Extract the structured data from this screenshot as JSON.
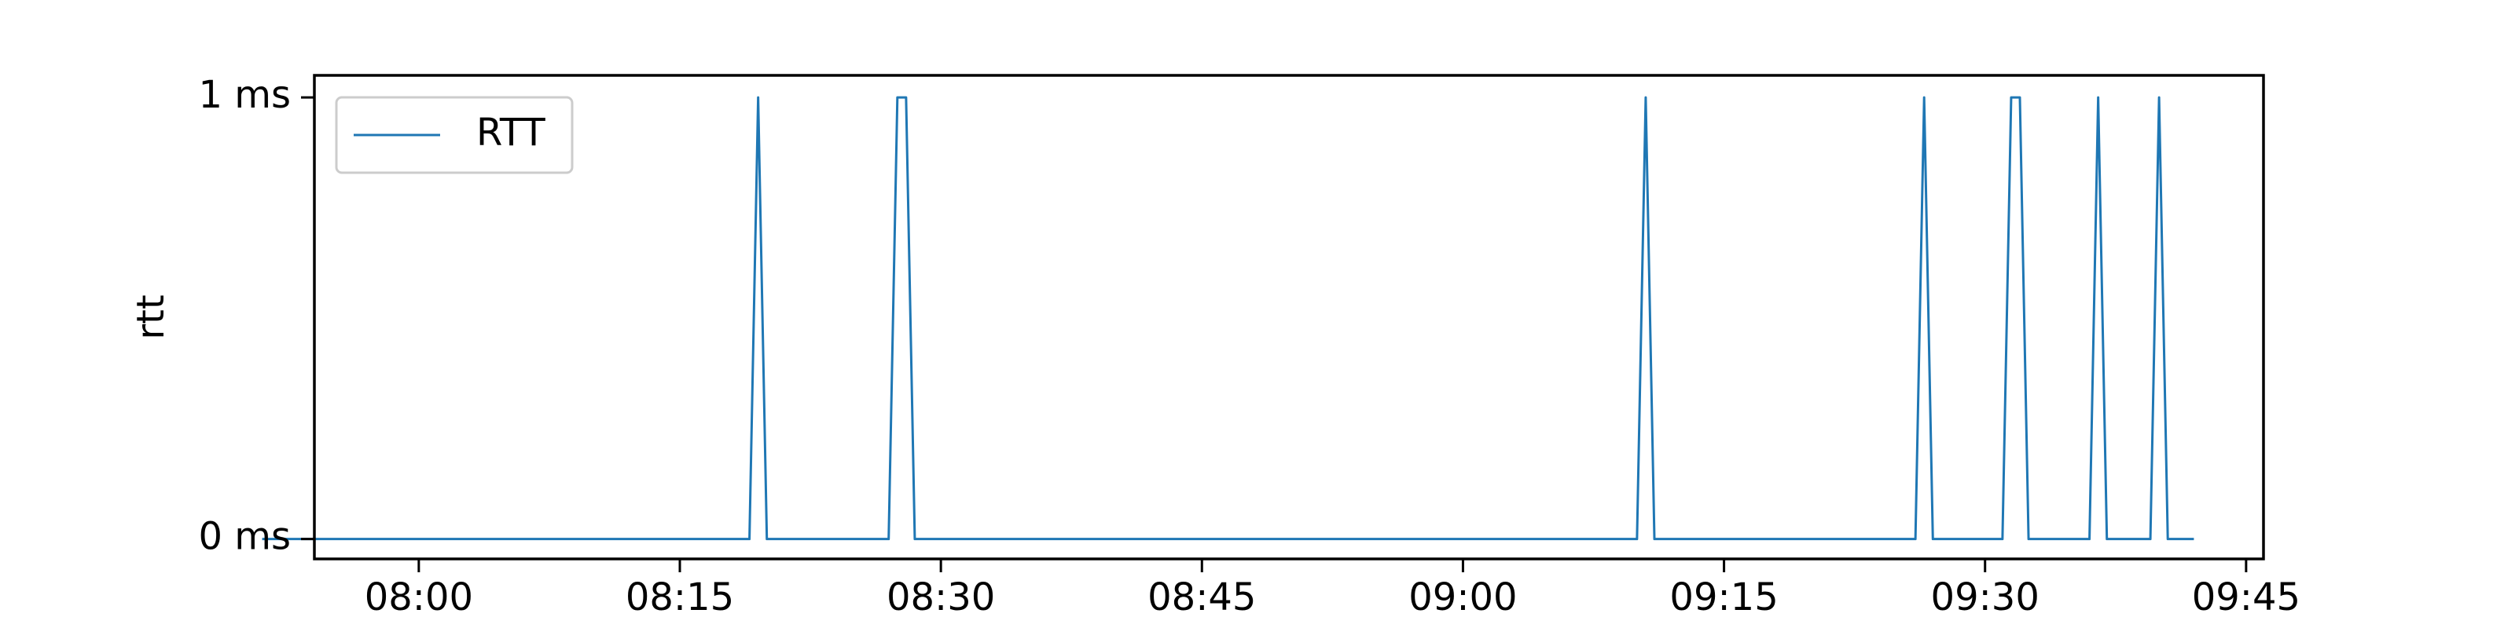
{
  "chart_data": {
    "type": "line",
    "title": "",
    "xlabel": "",
    "ylabel": "rtt",
    "x_ticks": [
      "08:00",
      "08:15",
      "08:30",
      "08:45",
      "09:00",
      "09:15",
      "09:30",
      "09:45"
    ],
    "y_ticks": [
      "0 ms",
      "1 ms"
    ],
    "xlim": [
      "07:54",
      "09:46"
    ],
    "ylim": [
      -0.045,
      1.05
    ],
    "grid": false,
    "legend_position": "top-left",
    "series": [
      {
        "name": "RTT",
        "color": "#1f77b4",
        "points": [
          [
            "07:51",
            0
          ],
          [
            "08:19",
            0
          ],
          [
            "08:19:30",
            1
          ],
          [
            "08:20",
            0
          ],
          [
            "08:27",
            0
          ],
          [
            "08:27:30",
            1
          ],
          [
            "08:28",
            1
          ],
          [
            "08:28:30",
            0
          ],
          [
            "09:10",
            0
          ],
          [
            "09:10:30",
            1
          ],
          [
            "09:11",
            0
          ],
          [
            "09:26",
            0
          ],
          [
            "09:26:30",
            1
          ],
          [
            "09:27",
            0
          ],
          [
            "09:31",
            0
          ],
          [
            "09:31:30",
            1
          ],
          [
            "09:32",
            1
          ],
          [
            "09:32:30",
            0
          ],
          [
            "09:36",
            0
          ],
          [
            "09:36:30",
            1
          ],
          [
            "09:37",
            0
          ],
          [
            "09:39:30",
            0
          ],
          [
            "09:40",
            1
          ],
          [
            "09:40:30",
            0
          ],
          [
            "09:42",
            0
          ]
        ]
      }
    ]
  }
}
